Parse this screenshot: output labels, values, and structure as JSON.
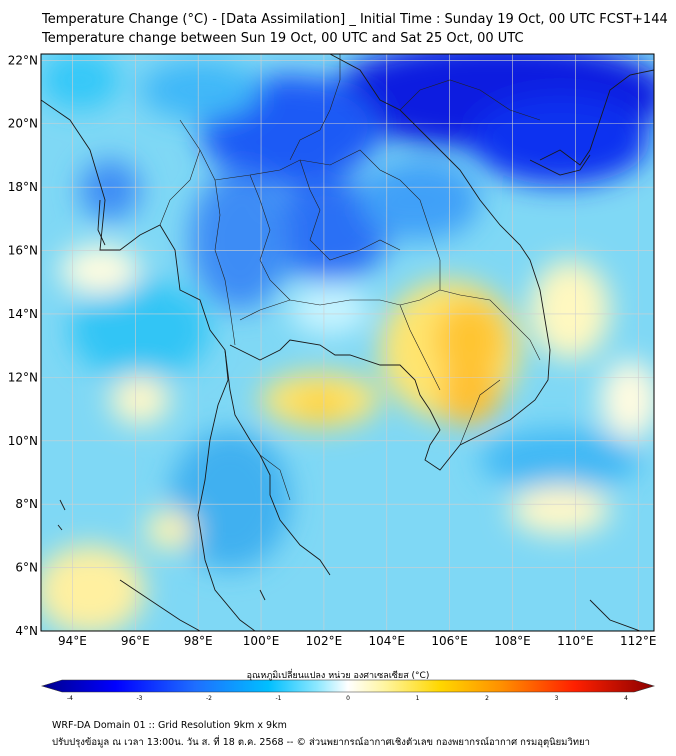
{
  "header": {
    "title_line1": "Temperature Change (°C) - [Data Assimilation] _ Initial Time : Sunday 19 Oct, 00 UTC FCST+144",
    "title_line2": "Temperature change between Sun 19 Oct, 00 UTC and Sat 25 Oct, 00 UTC"
  },
  "map": {
    "lat_labels": [
      "22°N",
      "20°N",
      "18°N",
      "16°N",
      "14°N",
      "12°N",
      "10°N",
      "8°N",
      "6°N",
      "4°N"
    ],
    "lon_labels": [
      "94°E",
      "96°E",
      "98°E",
      "100°E",
      "102°E",
      "104°E",
      "106°E",
      "108°E",
      "110°E",
      "112°E"
    ],
    "lat_range": [
      4,
      22.2
    ],
    "lon_range": [
      93,
      112.5
    ]
  },
  "colorbar": {
    "title": "อุณหภูมิเปลี่ยนแปลง หน่วย องศาเซลเซียส (°C)",
    "ticks": [
      "-4",
      "-3",
      "-2",
      "-1",
      "0",
      "1",
      "2",
      "3",
      "4"
    ],
    "range": [
      -4,
      4
    ],
    "colors": [
      "#00008b",
      "#0000ff",
      "#1e6eff",
      "#00bfff",
      "#8ee8ff",
      "#ffffff",
      "#fff5a0",
      "#ffd700",
      "#ff9000",
      "#ff2000",
      "#8b0000"
    ]
  },
  "footer": {
    "line1": "WRF-DA Domain 01 :: Grid Resolution 9km x 9km",
    "line2": "ปรับปรุงข้อมูล ณ เวลา 13:00น. วัน ส. ที่ 18 ต.ค. 2568 -- © ส่วนพยากรณ์อากาศเชิงตัวเลข กองพยากรณ์อากาศ กรมอุตุนิยมวิทยา"
  }
}
